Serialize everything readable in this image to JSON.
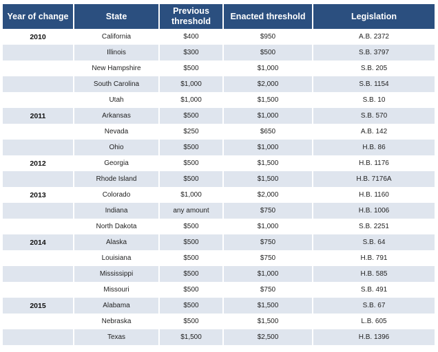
{
  "headers": {
    "year": "Year of change",
    "state": "State",
    "previous": "Previous threshold",
    "enacted": "Enacted threshold",
    "legislation": "Legislation"
  },
  "rows": [
    {
      "year": "2010",
      "state": "California",
      "previous": "$400",
      "enacted": "$950",
      "legislation": "A.B. 2372"
    },
    {
      "year": "",
      "state": "Illinois",
      "previous": "$300",
      "enacted": "$500",
      "legislation": "S.B. 3797"
    },
    {
      "year": "",
      "state": "New Hampshire",
      "previous": "$500",
      "enacted": "$1,000",
      "legislation": "S.B. 205"
    },
    {
      "year": "",
      "state": "South Carolina",
      "previous": "$1,000",
      "enacted": "$2,000",
      "legislation": "S.B. 1154"
    },
    {
      "year": "",
      "state": "Utah",
      "previous": "$1,000",
      "enacted": "$1,500",
      "legislation": "S.B. 10"
    },
    {
      "year": "2011",
      "state": "Arkansas",
      "previous": "$500",
      "enacted": "$1,000",
      "legislation": "S.B. 570"
    },
    {
      "year": "",
      "state": "Nevada",
      "previous": "$250",
      "enacted": "$650",
      "legislation": "A.B. 142"
    },
    {
      "year": "",
      "state": "Ohio",
      "previous": "$500",
      "enacted": "$1,000",
      "legislation": "H.B. 86"
    },
    {
      "year": "2012",
      "state": "Georgia",
      "previous": "$500",
      "enacted": "$1,500",
      "legislation": "H.B. 1176"
    },
    {
      "year": "",
      "state": "Rhode Island",
      "previous": "$500",
      "enacted": "$1,500",
      "legislation": "H.B. 7176A"
    },
    {
      "year": "2013",
      "state": "Colorado",
      "previous": "$1,000",
      "enacted": "$2,000",
      "legislation": "H.B. 1160"
    },
    {
      "year": "",
      "state": "Indiana",
      "previous": "any amount",
      "enacted": "$750",
      "legislation": "H.B. 1006"
    },
    {
      "year": "",
      "state": "North Dakota",
      "previous": "$500",
      "enacted": "$1,000",
      "legislation": "S.B. 2251"
    },
    {
      "year": "2014",
      "state": "Alaska",
      "previous": "$500",
      "enacted": "$750",
      "legislation": "S.B. 64"
    },
    {
      "year": "",
      "state": "Louisiana",
      "previous": "$500",
      "enacted": "$750",
      "legislation": "H.B. 791"
    },
    {
      "year": "",
      "state": "Mississippi",
      "previous": "$500",
      "enacted": "$1,000",
      "legislation": "H.B. 585"
    },
    {
      "year": "",
      "state": "Missouri",
      "previous": "$500",
      "enacted": "$750",
      "legislation": "S.B. 491"
    },
    {
      "year": "2015",
      "state": "Alabama",
      "previous": "$500",
      "enacted": "$1,500",
      "legislation": "S.B. 67"
    },
    {
      "year": "",
      "state": "Nebraska",
      "previous": "$500",
      "enacted": "$1,500",
      "legislation": "L.B. 605"
    },
    {
      "year": "",
      "state": "Texas",
      "previous": "$1,500",
      "enacted": "$2,500",
      "legislation": "H.B. 1396"
    }
  ],
  "colors": {
    "header_bg": "#2b4f7f",
    "header_text": "#ffffff",
    "stripe": "#dfe5ee"
  }
}
